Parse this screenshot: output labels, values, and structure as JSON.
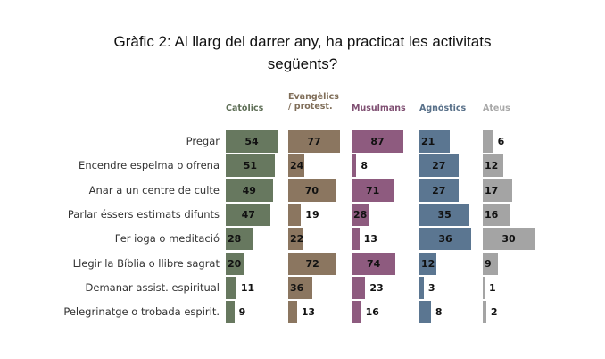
{
  "chart_data": {
    "type": "bar",
    "orientation": "horizontal",
    "title_line1": "Gràfic 2: Al llarg del darrer any, ha practicat les activitats",
    "title_line2": "següents?",
    "categories": [
      "Pregar",
      "Encendre espelma o ofrena",
      "Anar a un centre de culte",
      "Parlar éssers estimats difunts",
      "Fer ioga o meditació",
      "Llegir la Bíblia o llibre sagrat",
      "Demanar assist. espiritual",
      "Pelegrinatge o trobada espirit."
    ],
    "series": [
      {
        "name": "Catòlics",
        "color": "#67785f",
        "header_color": "#5e6e56",
        "values": [
          54,
          51,
          49,
          47,
          28,
          20,
          11,
          9
        ]
      },
      {
        "name": "Evangèlics / protest.",
        "name_line1": "Evangèlics",
        "name_line2": "/ protest.",
        "color": "#8b7660",
        "header_color": "#7f6d58",
        "values": [
          77,
          24,
          70,
          19,
          22,
          72,
          36,
          13
        ]
      },
      {
        "name": "Musulmans",
        "color": "#8e5b7f",
        "header_color": "#7f4f72",
        "values": [
          87,
          8,
          71,
          28,
          13,
          74,
          23,
          16
        ]
      },
      {
        "name": "Agnòstics",
        "color": "#5b7691",
        "header_color": "#587089",
        "values": [
          21,
          27,
          27,
          35,
          36,
          12,
          3,
          8
        ]
      },
      {
        "name": "Ateus",
        "color": "#a4a4a4",
        "header_color": "#a8a8a8",
        "values": [
          6,
          12,
          17,
          16,
          30,
          9,
          1,
          2
        ]
      }
    ]
  }
}
